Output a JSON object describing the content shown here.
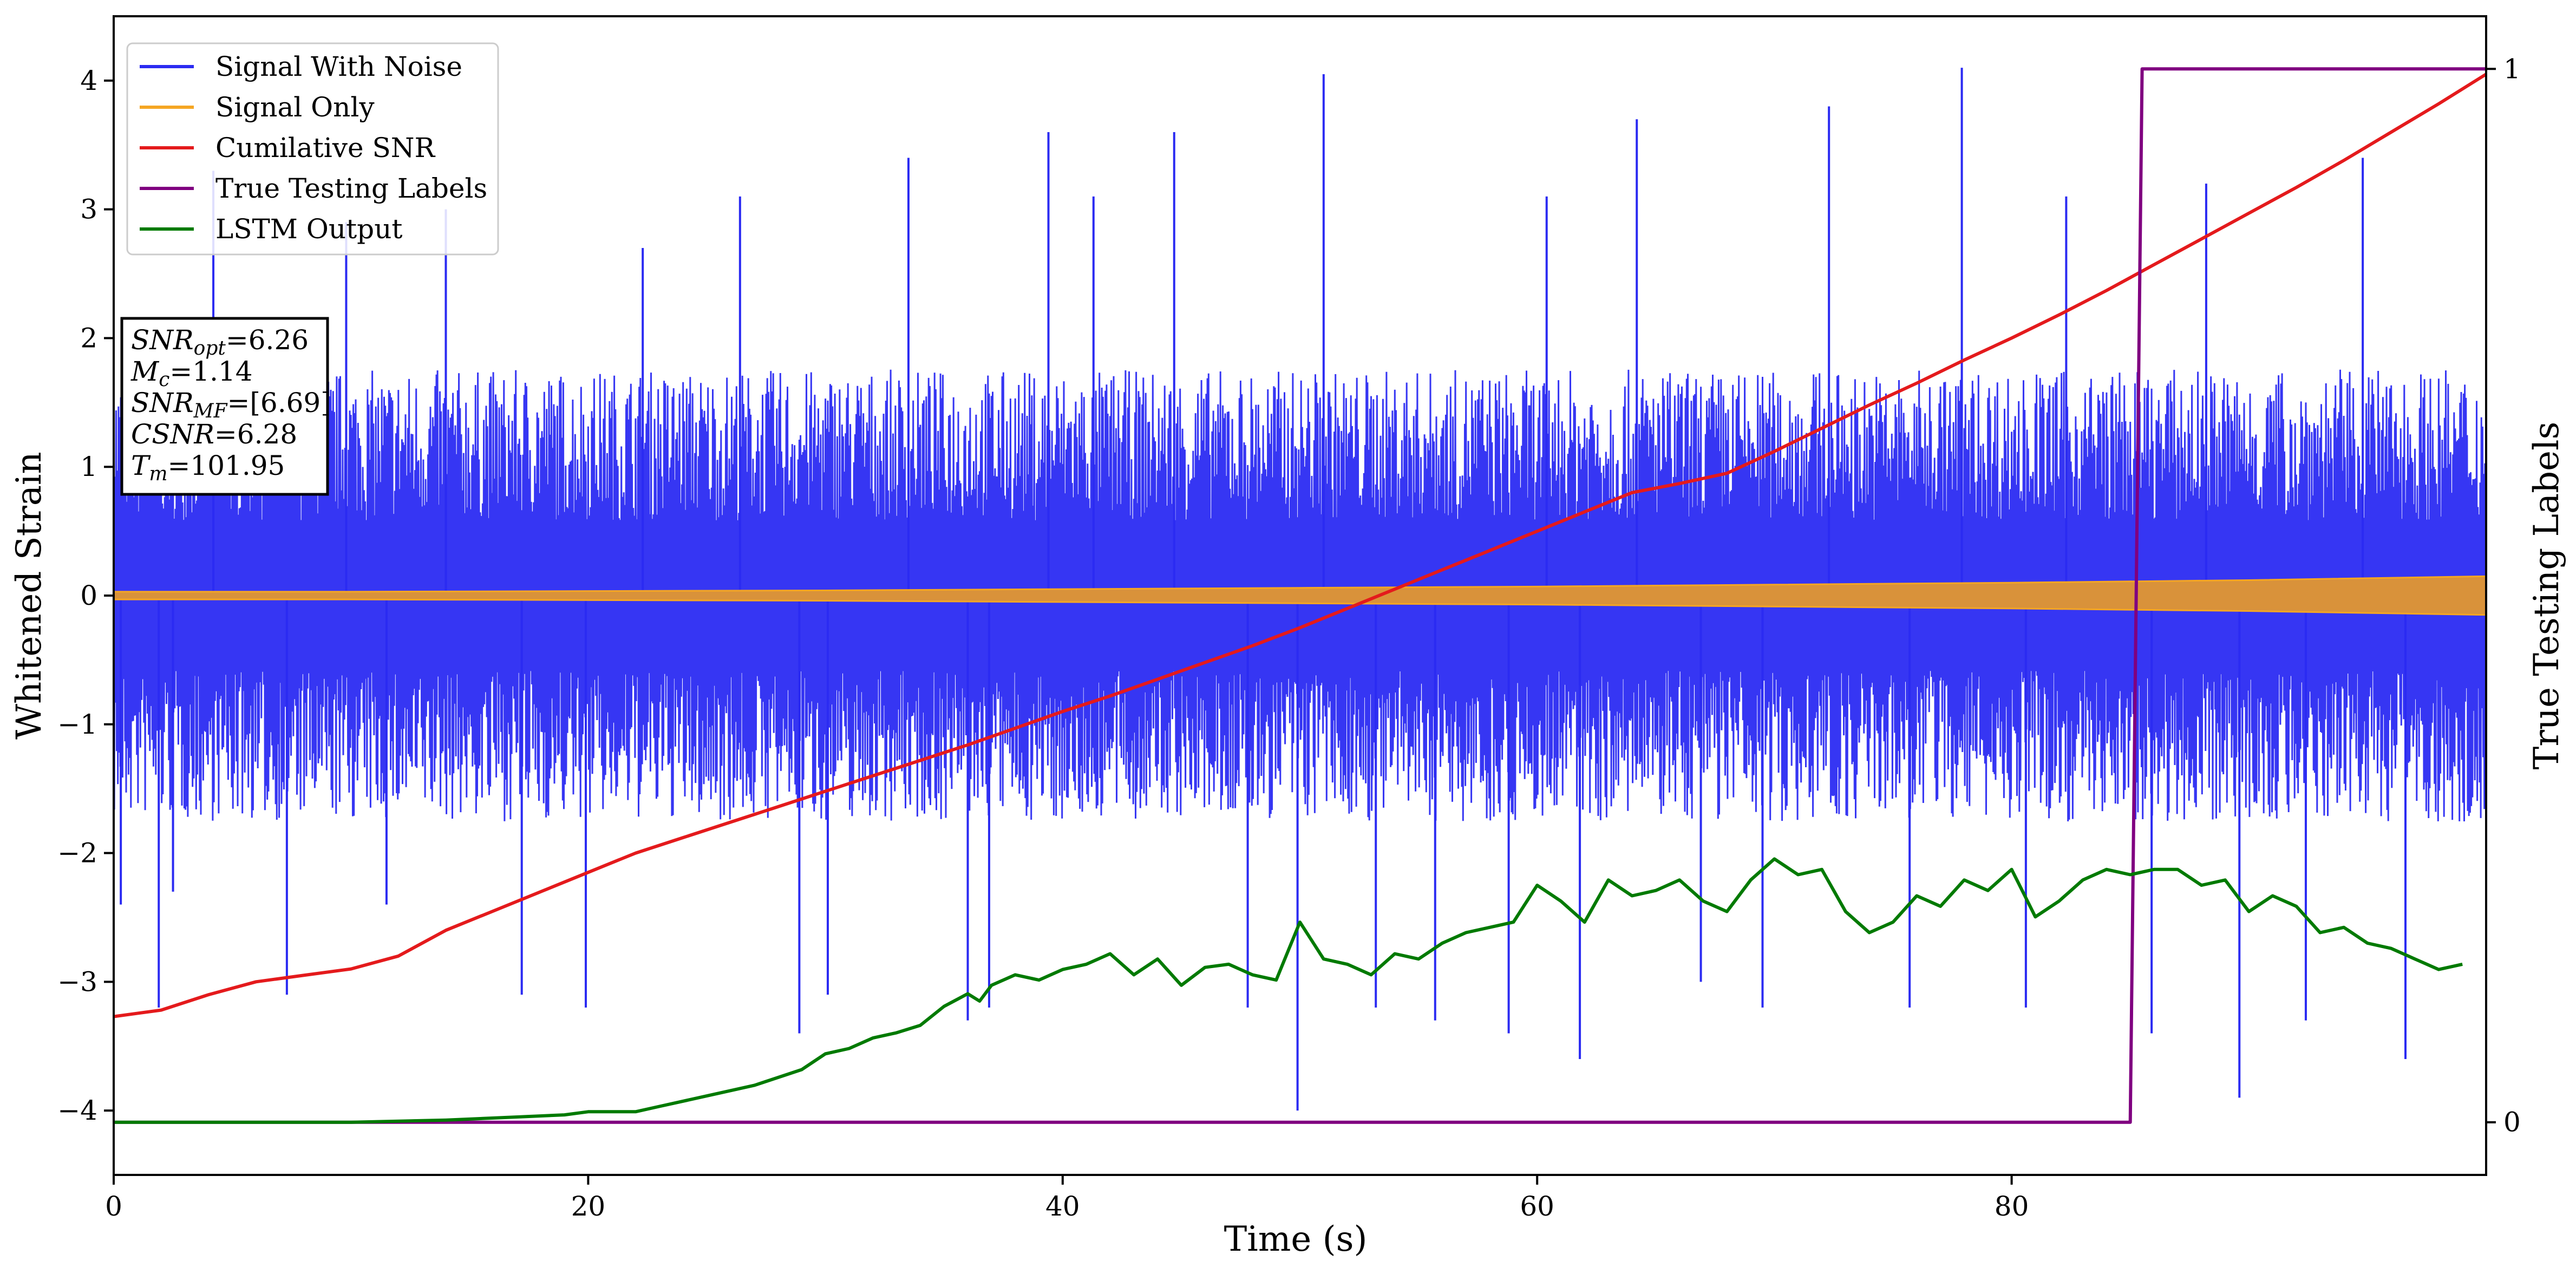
{
  "chart_data": {
    "type": "line",
    "title": "",
    "xlabel": "Time (s)",
    "ylabel": "Whitened Strain",
    "y2label": "True Testing Labels",
    "xlim": [
      0,
      100
    ],
    "ylim": [
      -4.5,
      4.5
    ],
    "y2lim": [
      -0.05,
      1.05
    ],
    "x_ticks": [
      "0",
      "20",
      "40",
      "60",
      "80"
    ],
    "y_ticks": [
      "−4",
      "−3",
      "−2",
      "−1",
      "0",
      "1",
      "2",
      "3",
      "4"
    ],
    "y2_ticks": [
      "0",
      "1"
    ],
    "grid": false,
    "legend_position": "top-left",
    "legend": [
      {
        "label": "Signal With Noise",
        "color": "#2b2bf2"
      },
      {
        "label": "Signal Only",
        "color": "#f5a623"
      },
      {
        "label": "Cumilative SNR",
        "color": "#e41a1c"
      },
      {
        "label": "True Testing Labels",
        "color": "#800080"
      },
      {
        "label": "LSTM Output",
        "color": "#007a00"
      }
    ],
    "annotation": [
      {
        "name": "SNR",
        "sub": "opt",
        "value": "=6.26"
      },
      {
        "name": "M",
        "sub": "c",
        "value": "=1.14"
      },
      {
        "name": "SNR",
        "sub": "MF",
        "value": "=[6.69]"
      },
      {
        "name": "CSNR",
        "sub": "",
        "value": "=6.28"
      },
      {
        "name": "T",
        "sub": "m",
        "value": "=101.95"
      }
    ],
    "series": [
      {
        "name": "Signal With Noise",
        "color": "#2b2bf2",
        "axis": "left",
        "style": "dense noise band",
        "band_core": [
          -1.3,
          1.3
        ],
        "spikes_x": [
          0.3,
          1.9,
          2.5,
          4.2,
          7.3,
          9.8,
          11.5,
          14.0,
          17.2,
          19.9,
          22.3,
          26.4,
          28.9,
          30.1,
          33.5,
          36.0,
          36.9,
          39.4,
          41.3,
          44.7,
          47.8,
          49.9,
          51.0,
          53.2,
          55.7,
          58.8,
          60.4,
          61.8,
          64.2,
          66.9,
          69.5,
          72.3,
          75.7,
          77.9,
          80.6,
          82.3,
          85.9,
          88.2,
          89.6,
          92.4,
          94.8,
          96.6
        ],
        "spikes_y": [
          -2.4,
          -3.2,
          -2.3,
          3.3,
          -3.1,
          2.9,
          -2.4,
          3.0,
          -3.1,
          -3.2,
          2.7,
          3.1,
          -3.4,
          -3.1,
          3.4,
          -3.3,
          -3.2,
          3.6,
          3.1,
          3.6,
          -3.2,
          -4.0,
          4.05,
          -3.2,
          -3.3,
          -3.4,
          3.1,
          -3.6,
          3.7,
          -3.0,
          -3.2,
          3.8,
          -3.2,
          4.1,
          -3.2,
          3.1,
          -3.4,
          3.2,
          -3.9,
          -3.3,
          3.4,
          -3.6
        ]
      },
      {
        "name": "Signal Only",
        "color": "#f5a623",
        "axis": "left",
        "style": "chirp envelope",
        "x": [
          0,
          10,
          20,
          30,
          40,
          50,
          60,
          70,
          80,
          90,
          100
        ],
        "amplitude": [
          0.03,
          0.03,
          0.035,
          0.04,
          0.05,
          0.06,
          0.07,
          0.085,
          0.1,
          0.12,
          0.15
        ]
      },
      {
        "name": "Cumilative SNR",
        "color": "#e41a1c",
        "axis": "left",
        "x": [
          0,
          2,
          4,
          6,
          8,
          10,
          12,
          14,
          16,
          18,
          20,
          22,
          24,
          26,
          28,
          30,
          32,
          34,
          36,
          38,
          40,
          42,
          44,
          46,
          48,
          50,
          52,
          54,
          56,
          58,
          60,
          62,
          64,
          66,
          68,
          70,
          72,
          74,
          76,
          78,
          80,
          82,
          84,
          86,
          88,
          90,
          92,
          94,
          96,
          98,
          100
        ],
        "values": [
          -3.27,
          -3.22,
          -3.1,
          -3.0,
          -2.95,
          -2.9,
          -2.8,
          -2.6,
          -2.45,
          -2.3,
          -2.15,
          -2.0,
          -1.88,
          -1.76,
          -1.64,
          -1.52,
          -1.4,
          -1.28,
          -1.16,
          -1.03,
          -0.9,
          -0.78,
          -0.65,
          -0.52,
          -0.39,
          -0.25,
          -0.1,
          0.05,
          0.2,
          0.35,
          0.5,
          0.65,
          0.8,
          0.87,
          0.95,
          1.12,
          1.3,
          1.48,
          1.65,
          1.83,
          2.0,
          2.18,
          2.37,
          2.57,
          2.77,
          2.97,
          3.17,
          3.38,
          3.6,
          3.82,
          4.05
        ]
      },
      {
        "name": "True Testing Labels",
        "color": "#800080",
        "axis": "right",
        "x": [
          0,
          85.0,
          85.5,
          100
        ],
        "values": [
          0,
          0,
          1,
          1
        ]
      },
      {
        "name": "LSTM Output",
        "color": "#007a00",
        "axis": "right",
        "x": [
          0,
          10,
          14,
          17,
          19,
          20,
          22,
          23,
          25,
          27,
          29,
          30,
          31,
          32,
          33,
          34,
          35,
          36,
          36.5,
          37,
          38,
          39,
          40,
          41,
          42,
          43,
          44,
          45,
          46,
          47,
          48,
          49,
          50,
          51,
          52,
          53,
          54,
          55,
          56,
          57,
          58,
          59,
          60,
          61,
          62,
          63,
          64,
          65,
          66,
          67,
          68,
          69,
          70,
          71,
          72,
          73,
          74,
          75,
          76,
          77,
          78,
          79,
          80,
          81,
          82,
          83,
          84,
          85,
          86,
          87,
          88,
          89,
          90,
          91,
          92,
          93,
          94,
          95,
          96,
          97,
          98,
          99
        ],
        "values": [
          0,
          0,
          0.002,
          0.005,
          0.007,
          0.01,
          0.01,
          0.015,
          0.025,
          0.035,
          0.05,
          0.065,
          0.07,
          0.08,
          0.085,
          0.092,
          0.11,
          0.122,
          0.115,
          0.13,
          0.14,
          0.135,
          0.145,
          0.15,
          0.16,
          0.14,
          0.155,
          0.13,
          0.147,
          0.15,
          0.14,
          0.135,
          0.19,
          0.155,
          0.15,
          0.14,
          0.16,
          0.155,
          0.17,
          0.18,
          0.185,
          0.19,
          0.225,
          0.21,
          0.19,
          0.23,
          0.215,
          0.22,
          0.23,
          0.21,
          0.2,
          0.23,
          0.25,
          0.235,
          0.24,
          0.2,
          0.18,
          0.19,
          0.215,
          0.205,
          0.23,
          0.22,
          0.24,
          0.195,
          0.21,
          0.23,
          0.24,
          0.235,
          0.24,
          0.24,
          0.225,
          0.23,
          0.2,
          0.215,
          0.205,
          0.18,
          0.185,
          0.17,
          0.165,
          0.155,
          0.145,
          0.15
        ]
      }
    ]
  }
}
